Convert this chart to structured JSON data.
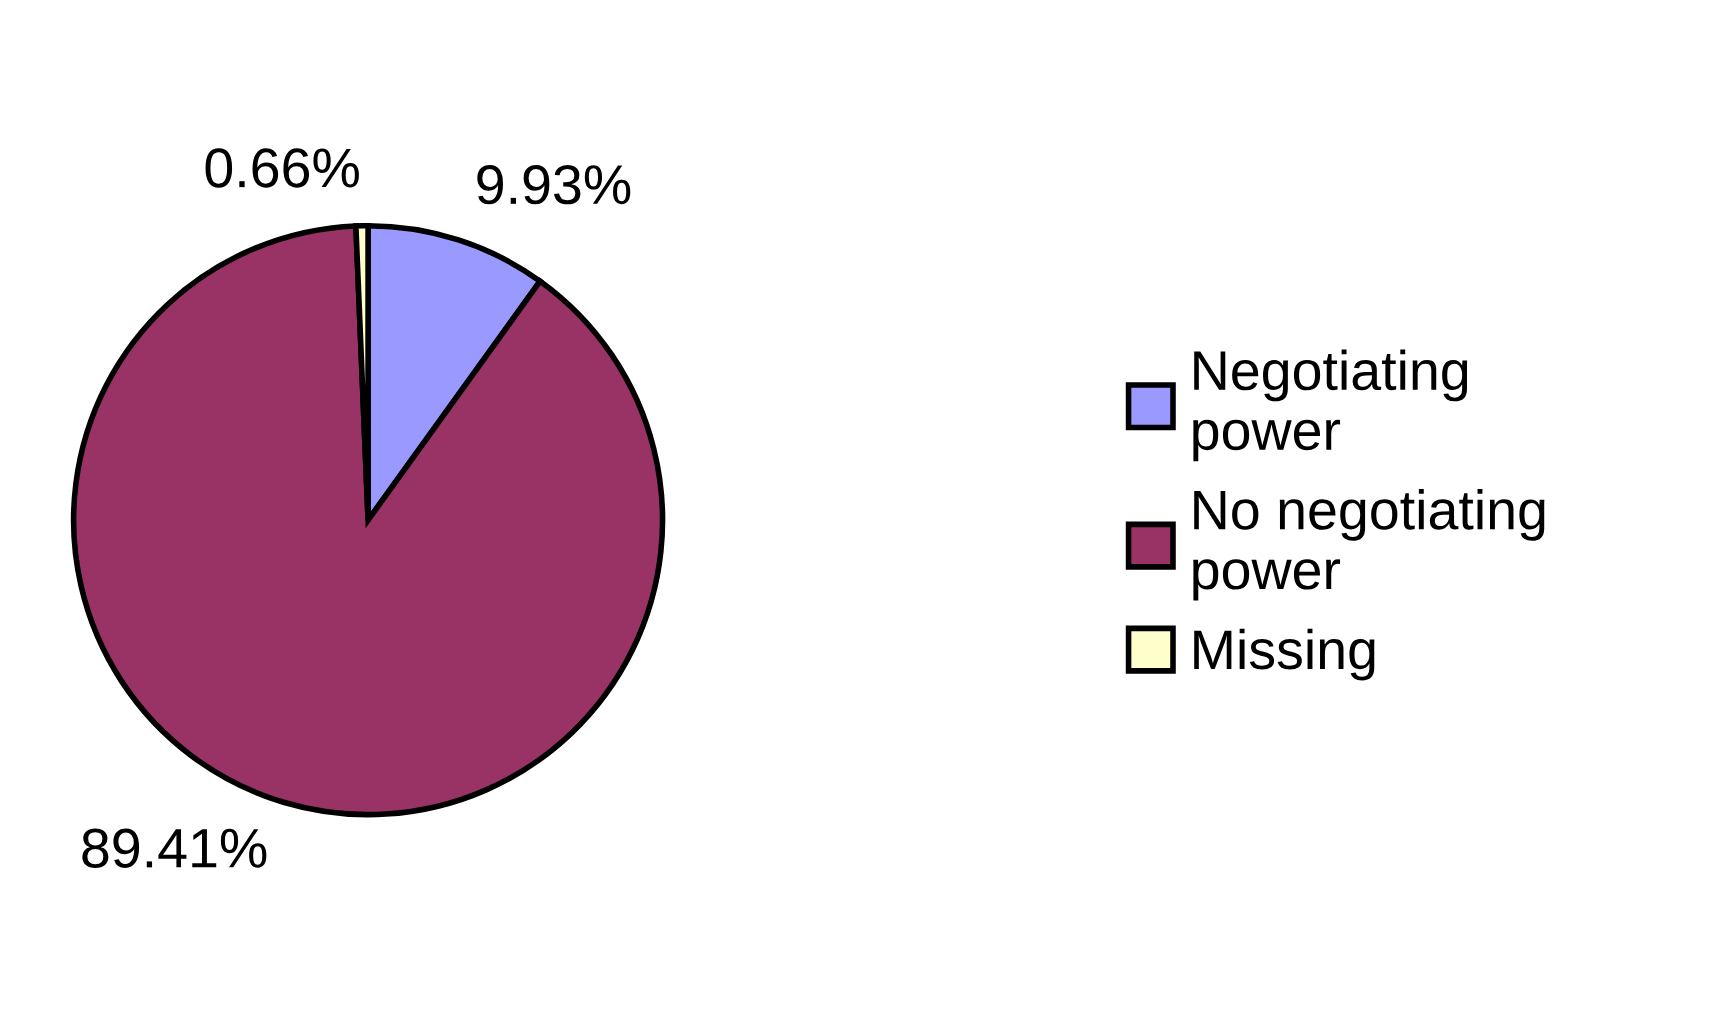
{
  "chart_data": {
    "type": "pie",
    "categories": [
      "Negotiating power",
      "No negotiating power",
      "Missing"
    ],
    "values": [
      9.93,
      89.41,
      0.66
    ],
    "colors": [
      "#9999ff",
      "#993366",
      "#ffffcc"
    ],
    "value_labels": [
      "9.93%",
      "89.41%",
      "0.66%"
    ],
    "legend": "right"
  }
}
